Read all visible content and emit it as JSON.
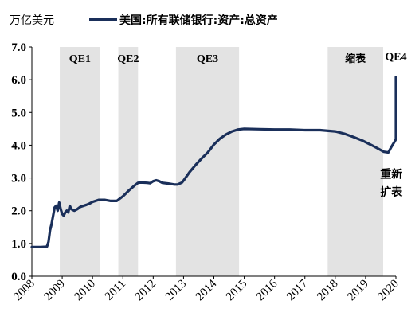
{
  "chart_data": {
    "type": "line",
    "ylabel": "万亿美元",
    "ylim": [
      0,
      7
    ],
    "yticks": [
      "0.0",
      "1.0",
      "2.0",
      "3.0",
      "4.0",
      "5.0",
      "6.0",
      "7.0"
    ],
    "xlim": [
      2008,
      2020
    ],
    "xticks": [
      "2008",
      "2009",
      "2010",
      "2011",
      "2012",
      "2013",
      "2014",
      "2015",
      "2016",
      "2017",
      "2018",
      "2019",
      "2020"
    ],
    "grid": false,
    "legend_position": "top",
    "series": [
      {
        "name": "美国:所有联储银行:资产:总资产",
        "color": "#1a2f5a",
        "points": [
          [
            2008.0,
            0.89
          ],
          [
            2008.3,
            0.89
          ],
          [
            2008.45,
            0.9
          ],
          [
            2008.5,
            0.91
          ],
          [
            2008.55,
            1.05
          ],
          [
            2008.6,
            1.4
          ],
          [
            2008.65,
            1.6
          ],
          [
            2008.7,
            1.85
          ],
          [
            2008.75,
            2.1
          ],
          [
            2008.8,
            2.15
          ],
          [
            2008.85,
            2.0
          ],
          [
            2008.9,
            2.25
          ],
          [
            2008.95,
            2.05
          ],
          [
            2009.0,
            1.9
          ],
          [
            2009.05,
            1.85
          ],
          [
            2009.1,
            1.95
          ],
          [
            2009.15,
            2.0
          ],
          [
            2009.2,
            1.95
          ],
          [
            2009.25,
            2.15
          ],
          [
            2009.3,
            2.05
          ],
          [
            2009.4,
            2.0
          ],
          [
            2009.5,
            2.05
          ],
          [
            2009.6,
            2.12
          ],
          [
            2009.8,
            2.18
          ],
          [
            2009.9,
            2.22
          ],
          [
            2010.0,
            2.27
          ],
          [
            2010.2,
            2.33
          ],
          [
            2010.4,
            2.33
          ],
          [
            2010.6,
            2.3
          ],
          [
            2010.8,
            2.3
          ],
          [
            2011.0,
            2.44
          ],
          [
            2011.2,
            2.62
          ],
          [
            2011.4,
            2.78
          ],
          [
            2011.5,
            2.85
          ],
          [
            2011.6,
            2.86
          ],
          [
            2011.8,
            2.85
          ],
          [
            2011.9,
            2.84
          ],
          [
            2012.0,
            2.9
          ],
          [
            2012.1,
            2.93
          ],
          [
            2012.2,
            2.9
          ],
          [
            2012.3,
            2.85
          ],
          [
            2012.5,
            2.83
          ],
          [
            2012.7,
            2.8
          ],
          [
            2012.8,
            2.8
          ],
          [
            2012.95,
            2.86
          ],
          [
            2013.0,
            2.92
          ],
          [
            2013.2,
            3.18
          ],
          [
            2013.4,
            3.4
          ],
          [
            2013.6,
            3.6
          ],
          [
            2013.8,
            3.78
          ],
          [
            2014.0,
            4.02
          ],
          [
            2014.2,
            4.2
          ],
          [
            2014.4,
            4.33
          ],
          [
            2014.6,
            4.42
          ],
          [
            2014.8,
            4.48
          ],
          [
            2015.0,
            4.5
          ],
          [
            2015.5,
            4.49
          ],
          [
            2016.0,
            4.48
          ],
          [
            2016.5,
            4.48
          ],
          [
            2017.0,
            4.46
          ],
          [
            2017.5,
            4.46
          ],
          [
            2018.0,
            4.42
          ],
          [
            2018.3,
            4.35
          ],
          [
            2018.6,
            4.25
          ],
          [
            2018.9,
            4.14
          ],
          [
            2019.2,
            4.0
          ],
          [
            2019.4,
            3.9
          ],
          [
            2019.6,
            3.8
          ],
          [
            2019.75,
            3.78
          ],
          [
            2019.85,
            3.95
          ],
          [
            2019.95,
            4.1
          ],
          [
            2020.05,
            4.18
          ],
          [
            2020.15,
            4.2
          ],
          [
            2020.22,
            4.2
          ],
          [
            2020.25,
            4.5
          ],
          [
            2020.28,
            5.3
          ],
          [
            2020.31,
            5.8
          ],
          [
            2020.35,
            6.08
          ]
        ]
      }
    ],
    "shaded_periods": [
      {
        "label": "QE1",
        "start": 2008.92,
        "end": 2010.25
      },
      {
        "label": "QE2",
        "start": 2010.85,
        "end": 2011.5
      },
      {
        "label": "QE3",
        "start": 2012.75,
        "end": 2014.83
      },
      {
        "label": "缩表",
        "start": 2017.75,
        "end": 2019.58
      }
    ],
    "annotations": [
      {
        "text": "QE4",
        "x": 2020.0,
        "y": 6.6
      },
      {
        "text": "重新",
        "x": 2019.85,
        "y": 3.0
      },
      {
        "text": "扩表",
        "x": 2019.85,
        "y": 2.45
      }
    ]
  }
}
